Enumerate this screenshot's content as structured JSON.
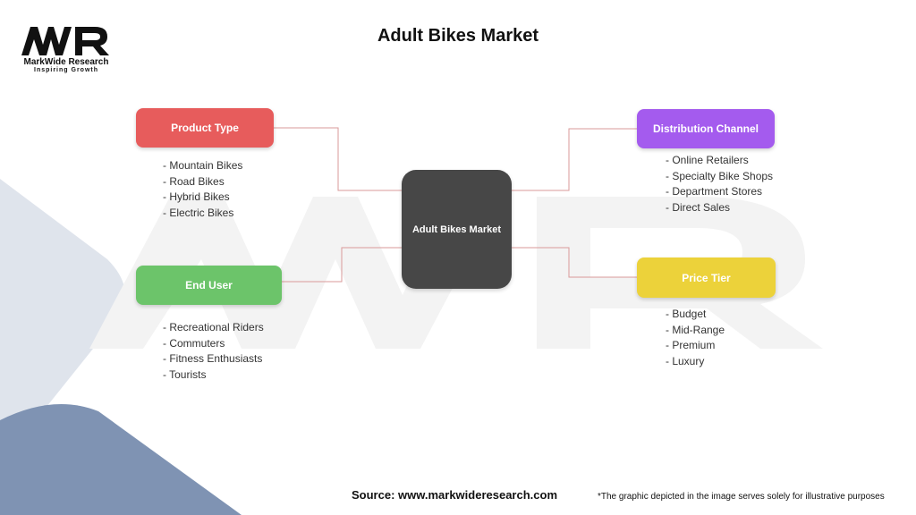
{
  "logo": {
    "letters": "MWR",
    "name": "MarkWide Research",
    "tagline": "Inspiring Growth"
  },
  "title": "Adult Bikes Market",
  "center": {
    "label": "Adult Bikes Market",
    "color": "#474747"
  },
  "categories": [
    {
      "label": "Product Type",
      "color": "#e75c5c",
      "items": [
        "- Mountain Bikes",
        "- Road Bikes",
        "- Hybrid Bikes",
        "- Electric Bikes"
      ]
    },
    {
      "label": "End User",
      "color": "#6cc46a",
      "items": [
        "- Recreational Riders",
        "- Commuters",
        "- Fitness Enthusiasts",
        "- Tourists"
      ]
    },
    {
      "label": "Distribution Channel",
      "color": "#a45bee",
      "items": [
        "- Online Retailers",
        "- Specialty Bike Shops",
        "- Department Stores",
        "- Direct Sales"
      ]
    },
    {
      "label": "Price Tier",
      "color": "#ecd23a",
      "items": [
        "- Budget",
        "- Mid-Range",
        "- Premium",
        "- Luxury"
      ]
    }
  ],
  "footer": {
    "source": "Source: www.markwideresearch.com",
    "disclaimer": "*The graphic depicted in the image serves solely for illustrative purposes"
  }
}
